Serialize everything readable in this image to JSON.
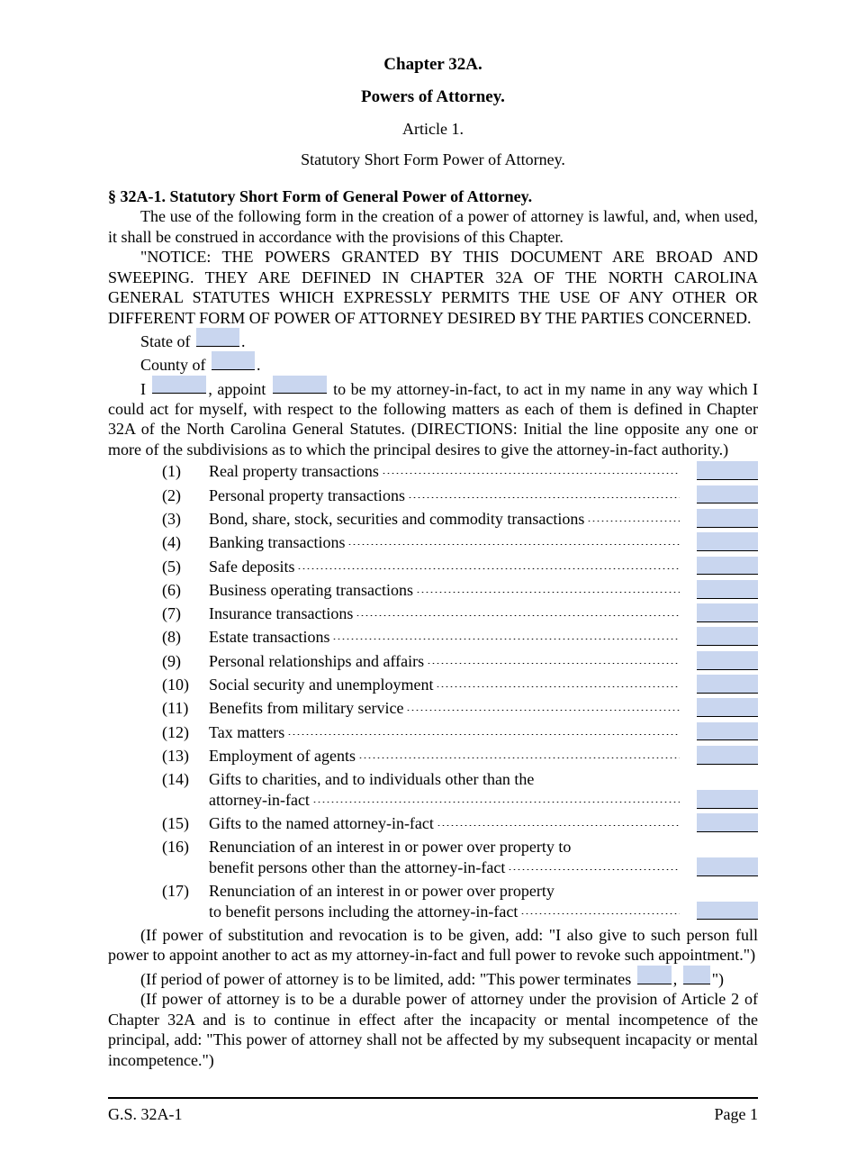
{
  "header": {
    "chapter": "Chapter 32A.",
    "title": "Powers of Attorney.",
    "article": "Article 1.",
    "subtitle": "Statutory Short Form Power of Attorney."
  },
  "section": {
    "heading": "§ 32A-1.  Statutory Short Form of General Power of Attorney.",
    "intro": "The use of the following form in the creation of a power of attorney is lawful, and, when used, it shall be construed in accordance with the provisions of this Chapter.",
    "notice": "\"NOTICE: THE POWERS GRANTED BY THIS DOCUMENT ARE BROAD AND SWEEPING. THEY ARE DEFINED IN CHAPTER 32A OF THE NORTH CAROLINA GENERAL STATUTES WHICH EXPRESSLY PERMITS THE USE OF ANY OTHER OR DIFFERENT FORM OF POWER OF ATTORNEY DESIRED BY THE PARTIES CONCERNED.",
    "state_label": "State of",
    "county_label": "County of",
    "i_label": "I",
    "appoint_label": ", appoint",
    "body_after_blanks": " to be my attorney-in-fact, to act in my name in any way which I could act for myself, with respect to the following matters as each of them is defined in Chapter 32A of the North Carolina General Statutes. (DIRECTIONS: Initial the line opposite any one or more of the subdivisions as to which the principal desires to give the attorney-in-fact authority.)"
  },
  "items": [
    {
      "num": "(1)",
      "label": "Real property transactions"
    },
    {
      "num": "(2)",
      "label": "Personal property transactions"
    },
    {
      "num": "(3)",
      "label": "Bond, share, stock, securities and commodity transactions"
    },
    {
      "num": "(4)",
      "label": "Banking transactions"
    },
    {
      "num": "(5)",
      "label": "Safe deposits"
    },
    {
      "num": "(6)",
      "label": "Business operating transactions"
    },
    {
      "num": "(7)",
      "label": "Insurance transactions"
    },
    {
      "num": "(8)",
      "label": "Estate transactions"
    },
    {
      "num": "(9)",
      "label": "Personal relationships and affairs"
    },
    {
      "num": "(10)",
      "label": "Social security and unemployment"
    },
    {
      "num": "(11)",
      "label": "Benefits from military service"
    },
    {
      "num": "(12)",
      "label": "Tax matters"
    },
    {
      "num": "(13)",
      "label": "Employment of agents"
    },
    {
      "num": "(14)",
      "label": "Gifts to charities, and to individuals other than the",
      "cont": "attorney-in-fact"
    },
    {
      "num": "(15)",
      "label": "Gifts to the named attorney-in-fact"
    },
    {
      "num": "(16)",
      "label": "Renunciation of an interest in or power over property to",
      "cont": "benefit persons other than the attorney-in-fact"
    },
    {
      "num": "(17)",
      "label": "Renunciation of an interest in or power over property",
      "cont": "to benefit persons including the attorney-in-fact"
    }
  ],
  "tail": {
    "p1": "(If power of substitution and revocation is to be given, add: \"I also give to such person full power to appoint another to act as my attorney-in-fact and full power to revoke such appointment.\")",
    "p2_before": "(If period of power of attorney is to be limited, add: \"This power terminates ",
    "p2_sep": ", ",
    "p2_after": "\")",
    "p3": "(If power of attorney is to be a durable power of attorney under the provision of Article 2 of Chapter 32A and is to continue in effect after the incapacity or mental incompetence of the principal, add: \"This power of attorney shall not be affected by my subsequent incapacity or mental incompetence.\")"
  },
  "footer": {
    "left": "G.S. 32A-1",
    "right": "Page 1"
  },
  "style": {
    "blank_color": "#c9d6ef",
    "text_color": "#000000",
    "font": "Times New Roman"
  }
}
